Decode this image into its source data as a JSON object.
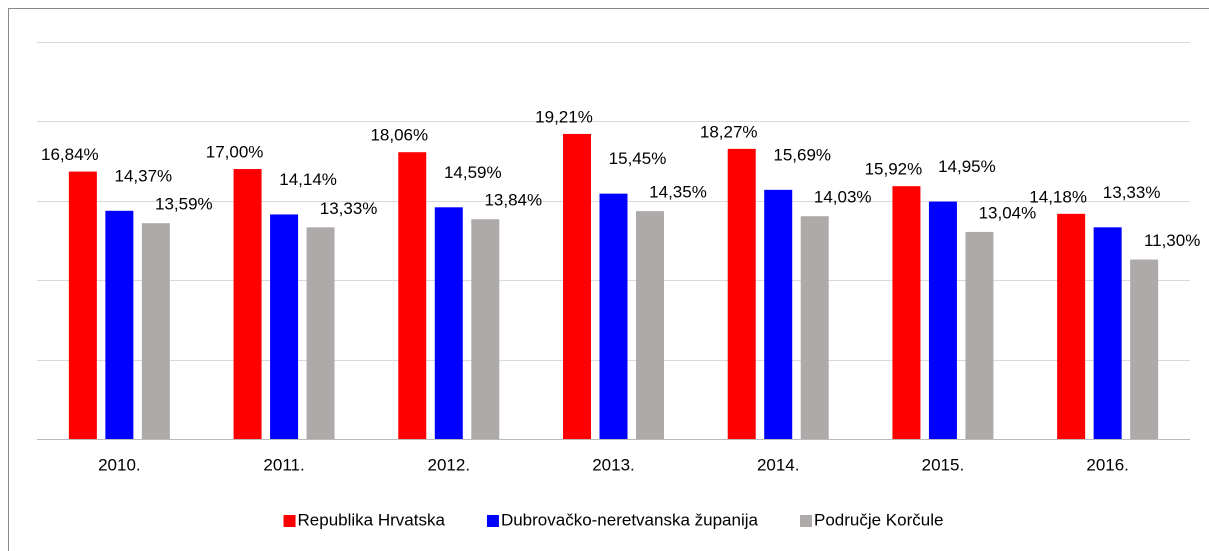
{
  "chart_data": {
    "type": "bar",
    "categories": [
      "2010.",
      "2011.",
      "2012.",
      "2013.",
      "2014.",
      "2015.",
      "2016."
    ],
    "series": [
      {
        "name": "Republika Hrvatska",
        "color": "#ff0000",
        "values": [
          16.84,
          17.0,
          18.06,
          19.21,
          18.27,
          15.92,
          14.18
        ],
        "value_labels": [
          "16,84%",
          "17,00%",
          "18,06%",
          "19,21%",
          "18,27%",
          "15,92%",
          "14,18%"
        ]
      },
      {
        "name": "Dubrovačko-neretvanska županija",
        "color": "#0000ff",
        "values": [
          14.37,
          14.14,
          14.59,
          15.45,
          15.69,
          14.95,
          13.33
        ],
        "value_labels": [
          "14,37%",
          "14,14%",
          "14,59%",
          "15,45%",
          "15,69%",
          "14,95%",
          "13,33%"
        ]
      },
      {
        "name": "Područje Korčule",
        "color": "#aeaaaa",
        "values": [
          13.59,
          13.33,
          13.84,
          14.35,
          14.03,
          13.04,
          11.3
        ],
        "value_labels": [
          "13,59%",
          "13,33%",
          "13,84%",
          "14,35%",
          "14,03%",
          "13,04%",
          "11,30%"
        ]
      }
    ],
    "ylim": [
      0,
      25
    ],
    "yticks": [
      0,
      5,
      10,
      15,
      20,
      25
    ],
    "grid": true,
    "legend": "bottom"
  }
}
